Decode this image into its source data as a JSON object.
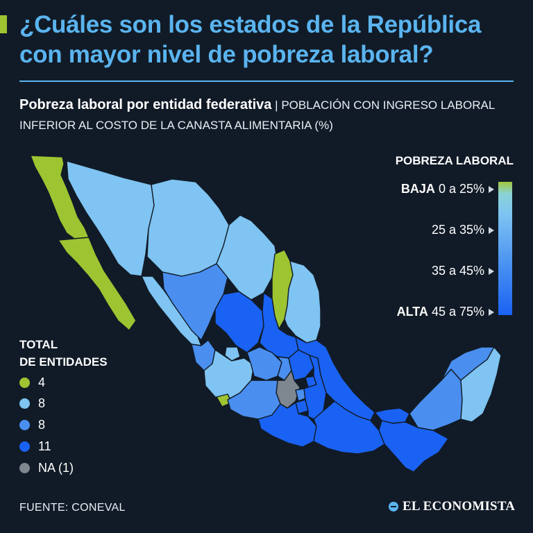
{
  "headline": {
    "line1": "¿Cuáles son los estados de la República",
    "line2": "con mayor nivel de pobreza laboral?"
  },
  "subtitle": {
    "bold": "Pobreza laboral por entidad federativa",
    "separator": " | ",
    "rest": "POBLACIÓN CON INGRESO LABORAL INFERIOR AL COSTO DE LA CANASTA ALIMENTARIA (%)"
  },
  "legend": {
    "title": "POBREZA LABORAL",
    "items": [
      {
        "level": "BAJA",
        "range": "0 a 25%"
      },
      {
        "level": "",
        "range": "25 a 35%"
      },
      {
        "level": "",
        "range": "35 a 45%"
      },
      {
        "level": "ALTA",
        "range": "45 a 75%"
      }
    ]
  },
  "totals": {
    "title_line1": "TOTAL",
    "title_line2": "DE ENTIDADES",
    "items": [
      {
        "count": "4",
        "color": "#9dc431"
      },
      {
        "count": "8",
        "color": "#7fc4f2"
      },
      {
        "count": "8",
        "color": "#4a8ff0"
      },
      {
        "count": "11",
        "color": "#1a62f3"
      },
      {
        "count": "NA (1)",
        "color": "#7e8790"
      }
    ]
  },
  "colors": {
    "category_1": "#9dc431",
    "category_2": "#7fc4f2",
    "category_3": "#4a8ff0",
    "category_4": "#1a62f3",
    "na": "#7e8790"
  },
  "source": "FUENTE: CONEVAL",
  "brand": "EL ECONOMISTA"
}
